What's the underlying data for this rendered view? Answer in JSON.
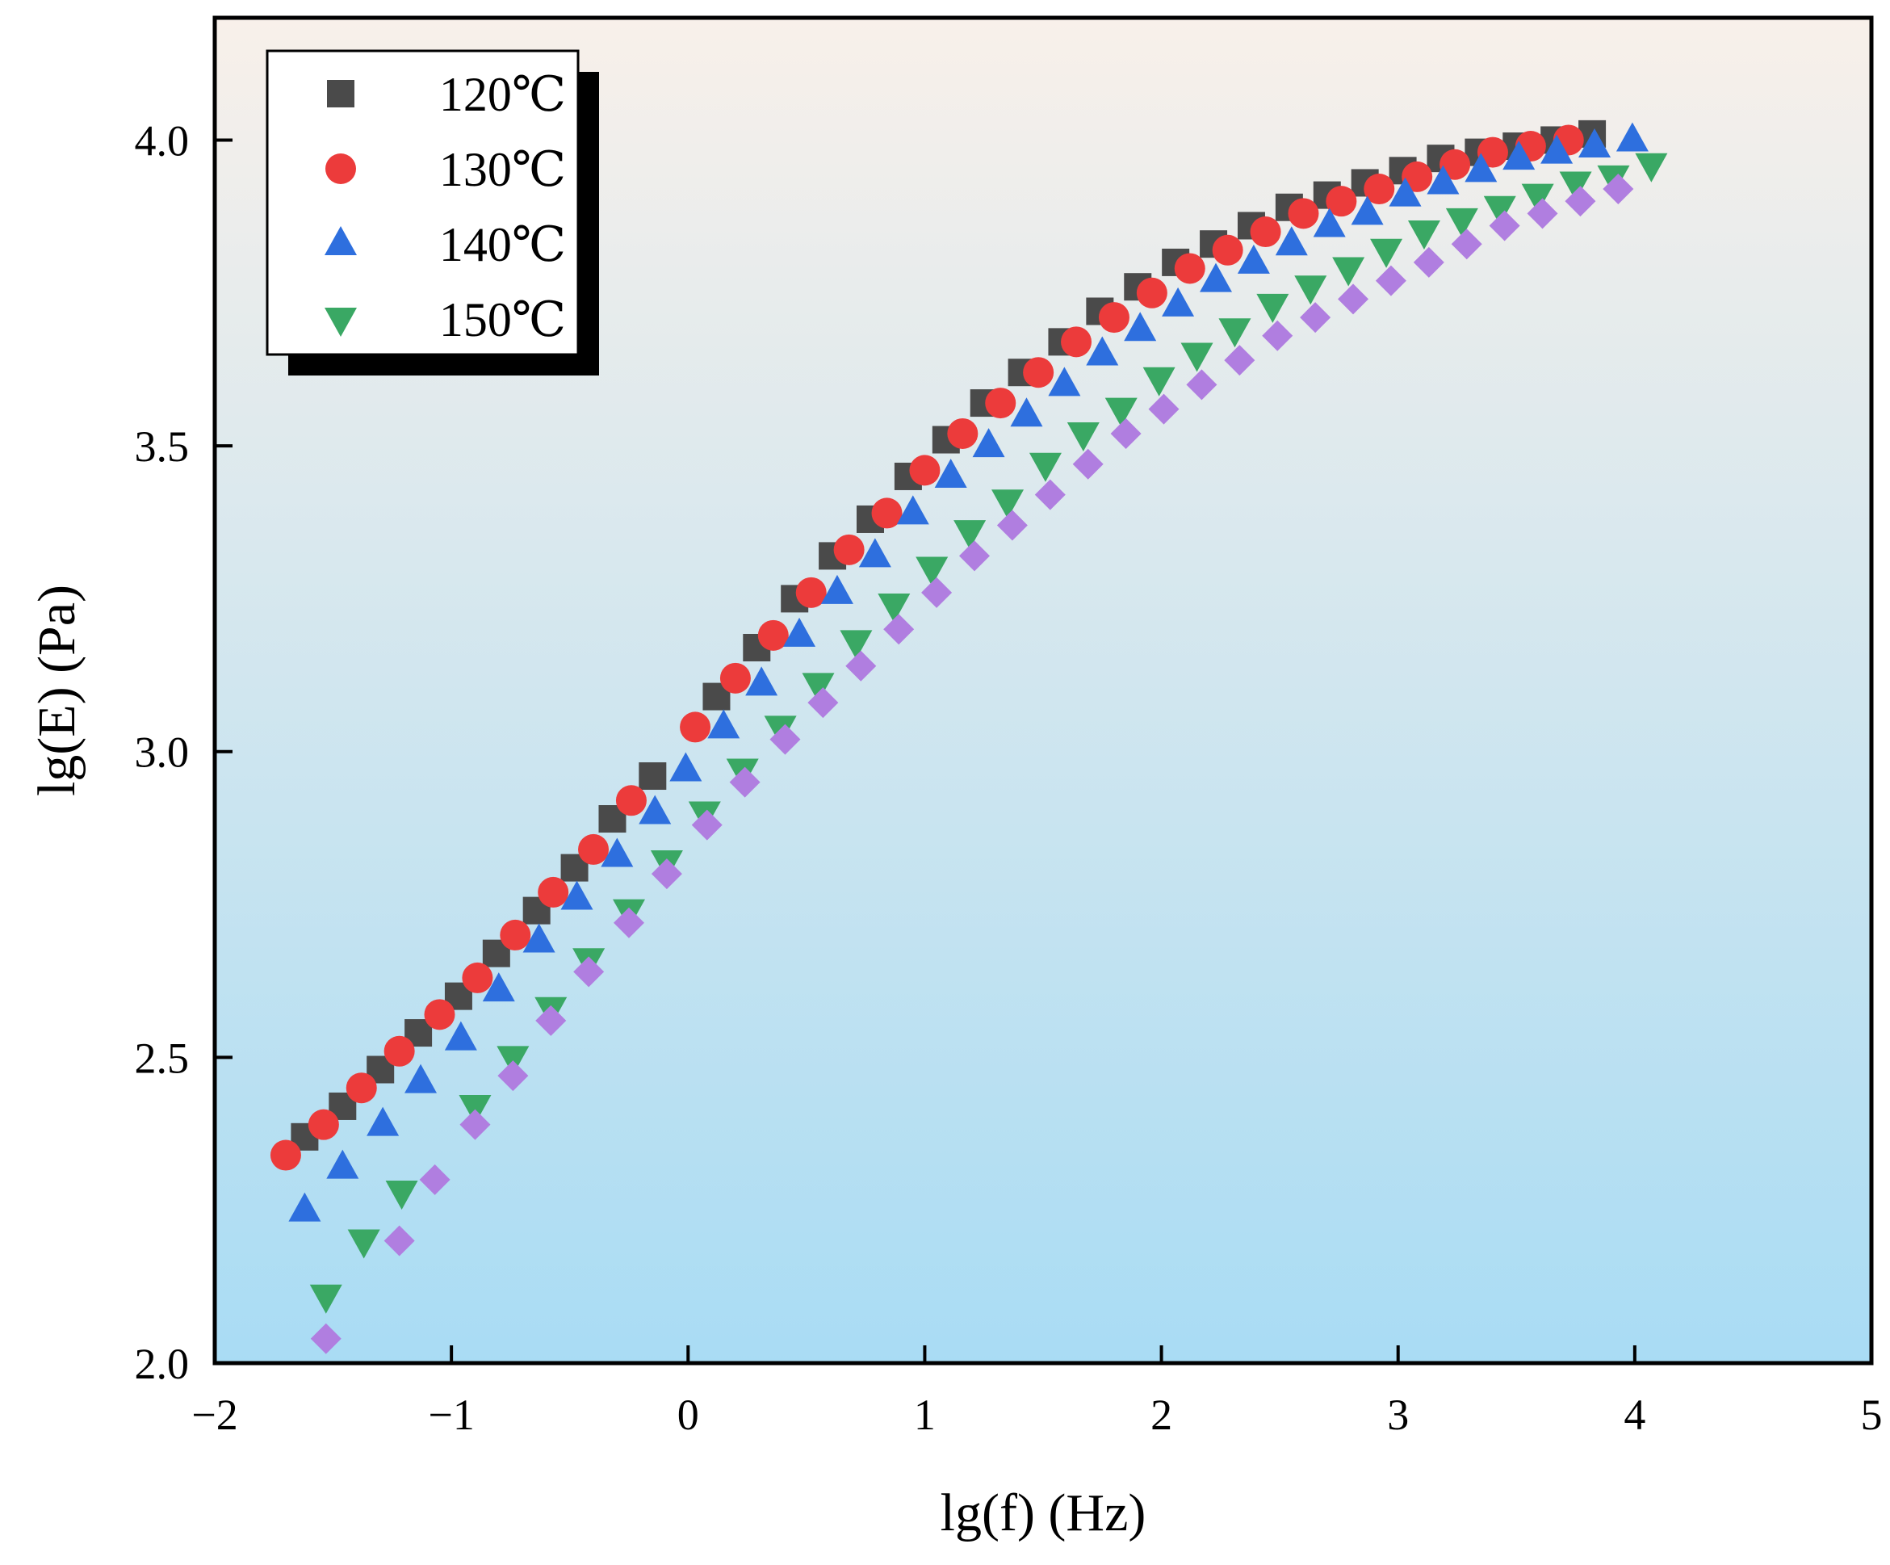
{
  "chart_data": {
    "type": "scatter",
    "title": "",
    "xlabel": "lg(f) (Hz)",
    "ylabel": "lg(E) (Pa)",
    "xlim": [
      -2,
      5
    ],
    "ylim": [
      2.0,
      4.2
    ],
    "x_ticks": [
      -2,
      -1,
      0,
      1,
      2,
      3,
      4,
      5
    ],
    "x_tick_labels": [
      "−2",
      "−1",
      "0",
      "1",
      "2",
      "3",
      "4",
      "5"
    ],
    "y_ticks": [
      2.0,
      2.5,
      3.0,
      3.5,
      4.0
    ],
    "y_tick_labels": [
      "2.0",
      "2.5",
      "3.0",
      "3.5",
      "4.0"
    ],
    "grid": false,
    "legend_position": "top-left",
    "background_gradient": [
      "#f8f0ea",
      "#a9dcf4"
    ],
    "series": [
      {
        "name": "120℃",
        "marker": "square",
        "color": "#4a4a4a",
        "in_legend": true,
        "x": [
          -1.62,
          -1.46,
          -1.3,
          -1.14,
          -0.97,
          -0.81,
          -0.64,
          -0.48,
          -0.32,
          -0.15,
          0.12,
          0.29,
          0.45,
          0.61,
          0.77,
          0.93,
          1.09,
          1.25,
          1.41,
          1.58,
          1.74,
          1.9,
          2.06,
          2.22,
          2.38,
          2.54,
          2.7,
          2.86,
          3.02,
          3.18,
          3.34,
          3.5,
          3.66,
          3.82
        ],
        "y": [
          2.37,
          2.42,
          2.48,
          2.54,
          2.6,
          2.67,
          2.74,
          2.81,
          2.89,
          2.96,
          3.09,
          3.17,
          3.25,
          3.32,
          3.38,
          3.45,
          3.51,
          3.57,
          3.62,
          3.67,
          3.72,
          3.76,
          3.8,
          3.83,
          3.86,
          3.89,
          3.91,
          3.93,
          3.95,
          3.97,
          3.98,
          3.99,
          4.0,
          4.01
        ]
      },
      {
        "name": "130℃",
        "marker": "circle",
        "color": "#ec3b3b",
        "in_legend": true,
        "x": [
          -1.7,
          -1.54,
          -1.38,
          -1.22,
          -1.05,
          -0.89,
          -0.73,
          -0.57,
          -0.4,
          -0.24,
          0.03,
          0.2,
          0.36,
          0.52,
          0.68,
          0.84,
          1.0,
          1.16,
          1.32,
          1.48,
          1.64,
          1.8,
          1.96,
          2.12,
          2.28,
          2.44,
          2.6,
          2.76,
          2.92,
          3.08,
          3.24,
          3.4,
          3.56,
          3.72
        ],
        "y": [
          2.34,
          2.39,
          2.45,
          2.51,
          2.57,
          2.63,
          2.7,
          2.77,
          2.84,
          2.92,
          3.04,
          3.12,
          3.19,
          3.26,
          3.33,
          3.39,
          3.46,
          3.52,
          3.57,
          3.62,
          3.67,
          3.71,
          3.75,
          3.79,
          3.82,
          3.85,
          3.88,
          3.9,
          3.92,
          3.94,
          3.96,
          3.98,
          3.99,
          4.0
        ]
      },
      {
        "name": "140℃",
        "marker": "triangle-up",
        "color": "#2e6fde",
        "in_legend": true,
        "x": [
          -1.62,
          -1.46,
          -1.29,
          -1.13,
          -0.96,
          -0.8,
          -0.63,
          -0.47,
          -0.3,
          -0.14,
          -0.01,
          0.15,
          0.31,
          0.47,
          0.63,
          0.79,
          0.95,
          1.11,
          1.27,
          1.43,
          1.59,
          1.75,
          1.91,
          2.07,
          2.23,
          2.39,
          2.55,
          2.71,
          2.87,
          3.03,
          3.19,
          3.35,
          3.51,
          3.67,
          3.83,
          3.99
        ],
        "y": [
          2.25,
          2.32,
          2.39,
          2.46,
          2.53,
          2.61,
          2.69,
          2.76,
          2.83,
          2.9,
          2.97,
          3.04,
          3.11,
          3.19,
          3.26,
          3.32,
          3.39,
          3.45,
          3.5,
          3.55,
          3.6,
          3.65,
          3.69,
          3.73,
          3.77,
          3.8,
          3.83,
          3.86,
          3.88,
          3.91,
          3.93,
          3.95,
          3.97,
          3.98,
          3.99,
          4.0
        ]
      },
      {
        "name": "150℃",
        "marker": "triangle-down",
        "color": "#3aa864",
        "in_legend": true,
        "x": [
          -1.53,
          -1.37,
          -1.21,
          -0.9,
          -0.74,
          -0.58,
          -0.42,
          -0.25,
          -0.09,
          0.07,
          0.23,
          0.39,
          0.55,
          0.71,
          0.87,
          1.03,
          1.19,
          1.35,
          1.51,
          1.67,
          1.83,
          1.99,
          2.15,
          2.31,
          2.47,
          2.63,
          2.79,
          2.95,
          3.11,
          3.27,
          3.43,
          3.59,
          3.75,
          3.91,
          4.07
        ],
        "y": [
          2.11,
          2.2,
          2.28,
          2.42,
          2.5,
          2.58,
          2.66,
          2.74,
          2.82,
          2.9,
          2.97,
          3.04,
          3.11,
          3.18,
          3.24,
          3.3,
          3.36,
          3.41,
          3.47,
          3.52,
          3.56,
          3.61,
          3.65,
          3.69,
          3.73,
          3.76,
          3.79,
          3.82,
          3.85,
          3.87,
          3.89,
          3.91,
          3.93,
          3.94,
          3.96
        ]
      },
      {
        "name": "",
        "marker": "diamond",
        "color": "#b07ee0",
        "in_legend": false,
        "x": [
          -1.53,
          -1.22,
          -1.07,
          -0.9,
          -0.74,
          -0.58,
          -0.42,
          -0.25,
          -0.09,
          0.08,
          0.24,
          0.41,
          0.57,
          0.73,
          0.89,
          1.05,
          1.21,
          1.37,
          1.53,
          1.69,
          1.85,
          2.01,
          2.17,
          2.33,
          2.49,
          2.65,
          2.81,
          2.97,
          3.13,
          3.29,
          3.45,
          3.61,
          3.77,
          3.93
        ],
        "y": [
          2.04,
          2.2,
          2.3,
          2.39,
          2.47,
          2.56,
          2.64,
          2.72,
          2.8,
          2.88,
          2.95,
          3.02,
          3.08,
          3.14,
          3.2,
          3.26,
          3.32,
          3.37,
          3.42,
          3.47,
          3.52,
          3.56,
          3.6,
          3.64,
          3.68,
          3.71,
          3.74,
          3.77,
          3.8,
          3.83,
          3.86,
          3.88,
          3.9,
          3.92
        ]
      }
    ]
  }
}
